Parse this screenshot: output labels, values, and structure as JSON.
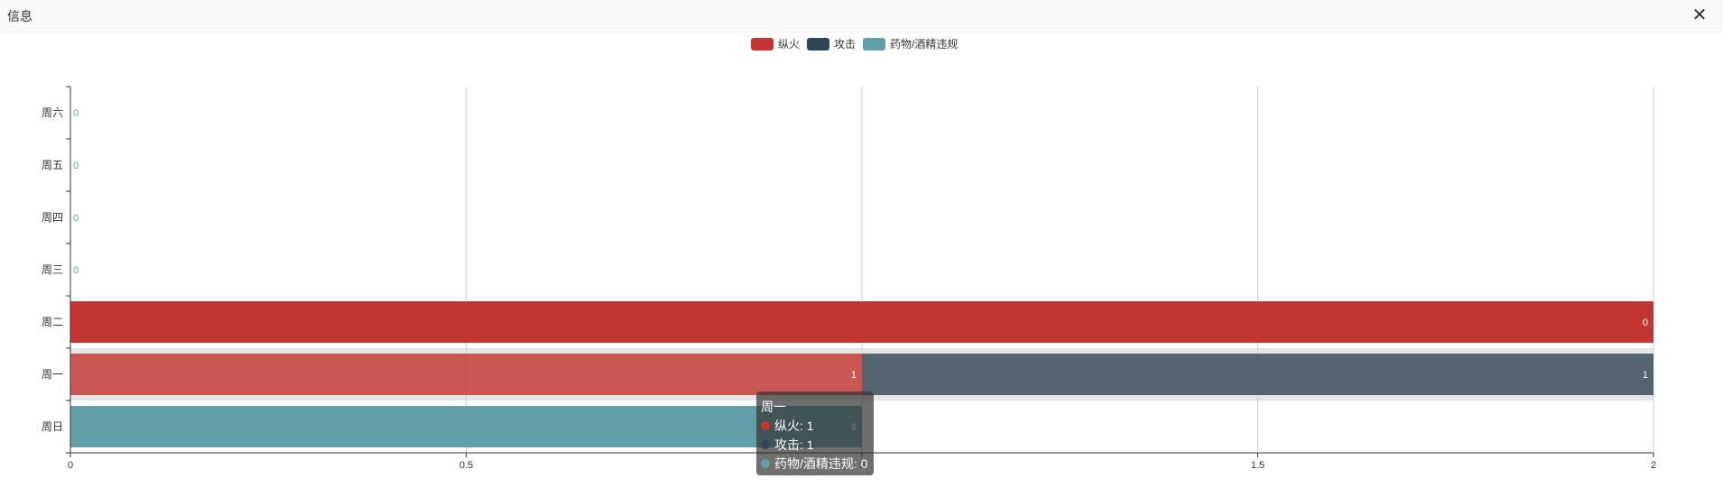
{
  "window": {
    "title": "信息",
    "close_icon": "close-icon"
  },
  "colors": {
    "fire": "#c23531",
    "attack": "#2f4554",
    "drug": "#61a0a8"
  },
  "chart_data": {
    "type": "bar",
    "orientation": "horizontal",
    "stacked": true,
    "categories": [
      "周日",
      "周一",
      "周二",
      "周三",
      "周四",
      "周五",
      "周六"
    ],
    "series": [
      {
        "name": "纵火",
        "values": [
          0,
          1,
          2,
          0,
          0,
          0,
          0
        ]
      },
      {
        "name": "攻击",
        "values": [
          0,
          1,
          0,
          0,
          0,
          0,
          0
        ]
      },
      {
        "name": "药物/酒精违规",
        "values": [
          1,
          0,
          0,
          0,
          0,
          0,
          0
        ]
      }
    ],
    "xlim": [
      0,
      2
    ],
    "xticks": [
      "0",
      "0.5",
      "1",
      "1.5",
      "2"
    ],
    "grid": true,
    "legend_position": "top-center",
    "highlighted_category": "周一",
    "data_labels": [
      {
        "category": "周六",
        "text": "0"
      },
      {
        "category": "周五",
        "text": "0"
      },
      {
        "category": "周四",
        "text": "0"
      },
      {
        "category": "周三",
        "text": "0"
      },
      {
        "category": "周二",
        "text": "0"
      },
      {
        "category": "周一",
        "series": "纵火",
        "text": "1"
      },
      {
        "category": "周一",
        "series": "攻击",
        "text": "1"
      },
      {
        "category": "周日",
        "text": "0"
      },
      {
        "category": "周日",
        "series": "药物/酒精违规",
        "text": "1"
      }
    ]
  },
  "tooltip": {
    "title": "周一",
    "rows": [
      {
        "label": "纵火: 1"
      },
      {
        "label": "攻击: 1"
      },
      {
        "label": "药物/酒精违规: 0"
      }
    ]
  }
}
